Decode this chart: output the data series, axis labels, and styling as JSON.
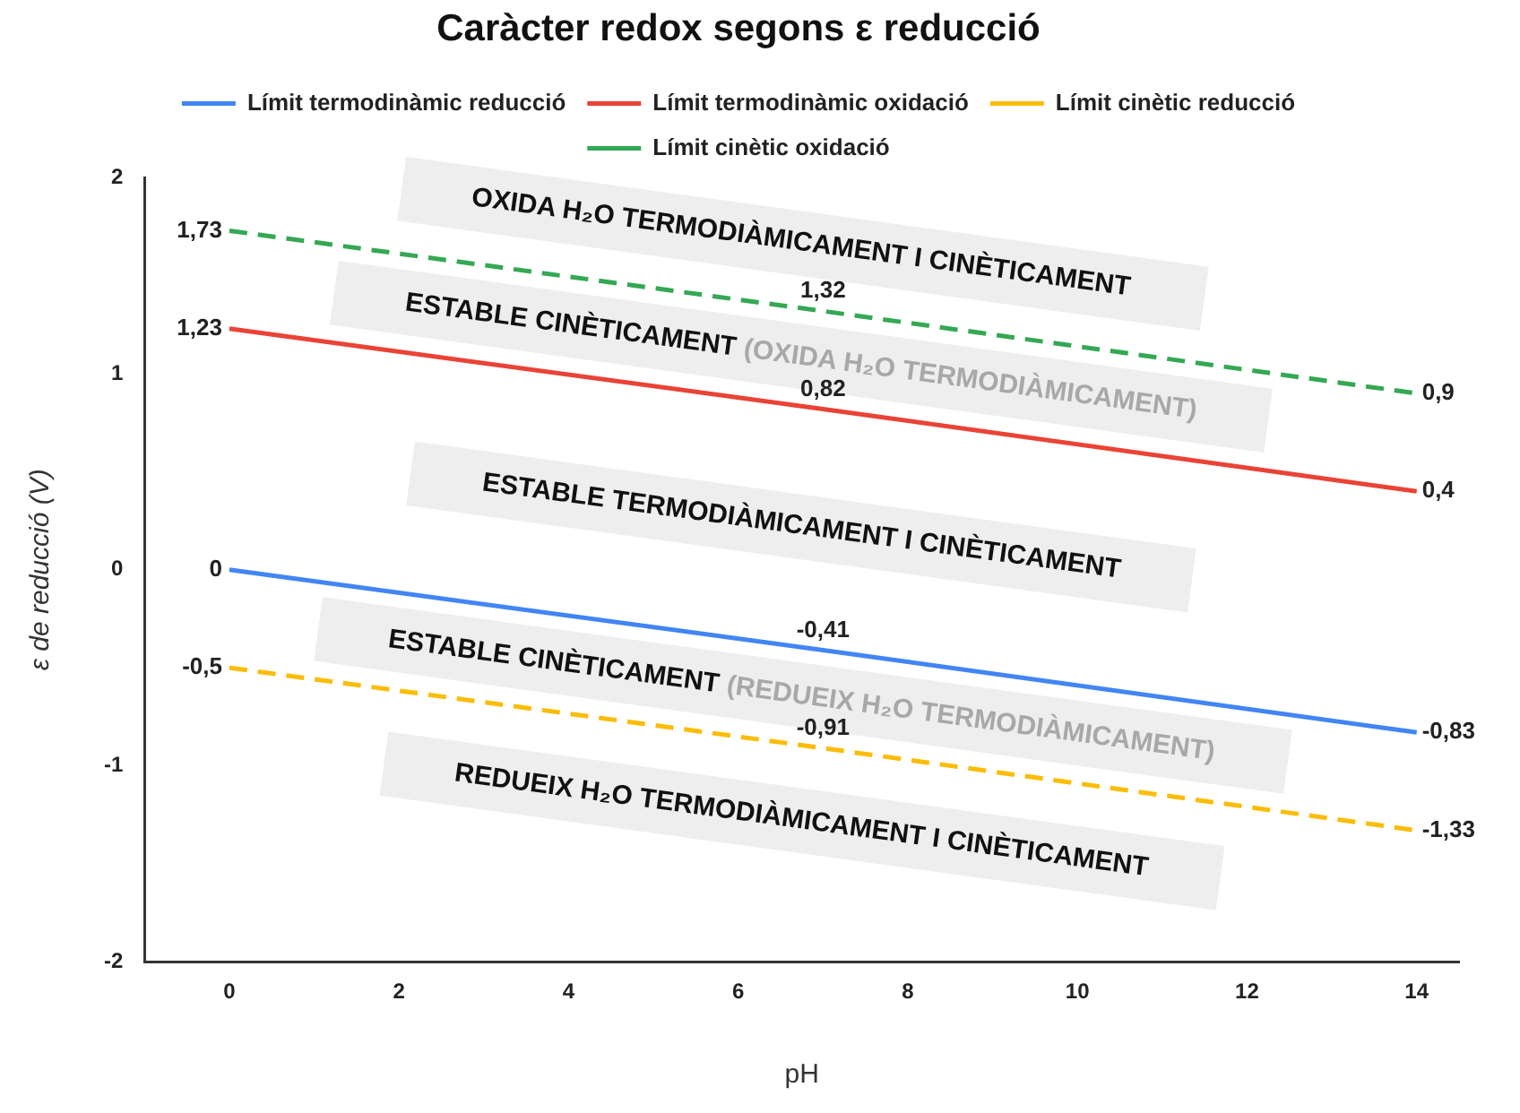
{
  "chart_data": {
    "type": "line",
    "title": "Caràcter redox segons ε reducció",
    "xlabel": "pH",
    "ylabel": "ε de reducció (V)",
    "x": [
      0,
      7,
      14
    ],
    "xlim": [
      -1,
      14.5
    ],
    "xticks": [
      0,
      2,
      4,
      6,
      8,
      10,
      12,
      14
    ],
    "ylim": [
      -2,
      2
    ],
    "yticks": [
      -2,
      -1,
      0,
      1,
      2
    ],
    "grid": false,
    "legend": "top",
    "marker": "none",
    "series": [
      {
        "name": "Límit termodinàmic reducció",
        "color": "#4285f4",
        "line_style": "solid",
        "values": [
          0,
          -0.41,
          -0.83
        ],
        "value_labels": [
          "0",
          "-0,41",
          "-0,83"
        ]
      },
      {
        "name": "Límit termodinàmic oxidació",
        "color": "#ea4335",
        "line_style": "solid",
        "values": [
          1.23,
          0.82,
          0.4
        ],
        "value_labels": [
          "1,23",
          "0,82",
          "0,4"
        ]
      },
      {
        "name": "Límit cinètic reducció",
        "color": "#fbbc04",
        "line_style": "dashed",
        "values": [
          -0.5,
          -0.91,
          -1.33
        ],
        "value_labels": [
          "-0,5",
          "-0,91",
          "-1,33"
        ]
      },
      {
        "name": "Límit cinètic oxidació",
        "color": "#34a853",
        "line_style": "dashed",
        "values": [
          1.73,
          1.32,
          0.9
        ],
        "value_labels": [
          "1,73",
          "1,32",
          "0,9"
        ]
      }
    ],
    "annotations": [
      "OXIDA H₂O TERMODIÀMICAMENT I CINÈTICAMENT",
      "ESTABLE CINÈTICAMENT (OXIDA H₂O TERMODIÀMICAMENT)",
      "ESTABLE TERMODIÀMICAMENT I CINÈTICAMENT",
      "ESTABLE CINÈTICAMENT (REDUEIX H₂O TERMODIÀMICAMENT)",
      "REDUEIX H₂O TERMODIÀMICAMENT I CINÈTICAMENT"
    ]
  }
}
